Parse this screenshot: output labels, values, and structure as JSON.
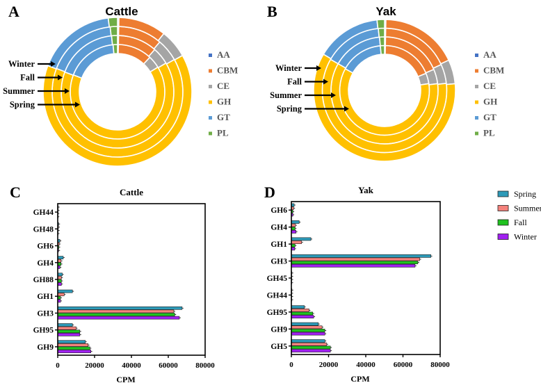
{
  "chart_data": [
    {
      "panel": "A",
      "type": "pie",
      "title": "Cattle",
      "rings": [
        "Spring",
        "Summer",
        "Fall",
        "Winter"
      ],
      "categories": [
        "AA",
        "CBM",
        "CE",
        "GH",
        "GT",
        "PL"
      ],
      "colors": {
        "AA": "#4472C4",
        "CBM": "#ED7D31",
        "CE": "#A5A5A5",
        "GH": "#FFC000",
        "GT": "#5B9BD5",
        "PL": "#70AD47"
      },
      "series": [
        {
          "name": "Spring",
          "values": [
            0.3,
            11.7,
            4.3,
            64.5,
            17.7,
            1.5
          ]
        },
        {
          "name": "Summer",
          "values": [
            0.3,
            11.2,
            5.0,
            64.2,
            17.6,
            1.7
          ]
        },
        {
          "name": "Fall",
          "values": [
            0.3,
            10.9,
            5.6,
            64.0,
            17.4,
            1.8
          ]
        },
        {
          "name": "Winter",
          "values": [
            0.3,
            10.4,
            6.2,
            63.8,
            17.3,
            2.0
          ]
        }
      ]
    },
    {
      "panel": "B",
      "type": "pie",
      "title": "Yak",
      "rings": [
        "Spring",
        "Summer",
        "Fall",
        "Winter"
      ],
      "categories": [
        "AA",
        "CBM",
        "CE",
        "GH",
        "GT",
        "PL"
      ],
      "colors": {
        "AA": "#4472C4",
        "CBM": "#ED7D31",
        "CE": "#A5A5A5",
        "GH": "#FFC000",
        "GT": "#5B9BD5",
        "PL": "#70AD47"
      },
      "series": [
        {
          "name": "Spring",
          "values": [
            0.3,
            18.5,
            3.8,
            60.4,
            15.5,
            1.5
          ]
        },
        {
          "name": "Summer",
          "values": [
            0.3,
            18.3,
            4.4,
            60.3,
            15.2,
            1.5
          ]
        },
        {
          "name": "Fall",
          "values": [
            0.3,
            17.9,
            5.0,
            60.1,
            15.1,
            1.6
          ]
        },
        {
          "name": "Winter",
          "values": [
            0.3,
            17.7,
            5.5,
            60.0,
            14.8,
            1.7
          ]
        }
      ]
    },
    {
      "panel": "C",
      "type": "bar",
      "orientation": "horizontal",
      "title": "Cattle",
      "xlabel": "CPM",
      "ylabel": "",
      "xlim": [
        0,
        80000
      ],
      "xticks": [
        "0",
        "20000",
        "40000",
        "60000",
        "80000"
      ],
      "categories": [
        "GH44",
        "GH48",
        "GH6",
        "GH4",
        "GH88",
        "GH1",
        "GH3",
        "GH95",
        "GH9"
      ],
      "series": [
        {
          "name": "Spring",
          "color": "#2E9AB8",
          "values": [
            300,
            500,
            1200,
            3000,
            2500,
            8000,
            67500,
            8000,
            15000
          ]
        },
        {
          "name": "Summer",
          "color": "#F4827C",
          "values": [
            200,
            400,
            800,
            1800,
            2000,
            3500,
            63000,
            10000,
            16500
          ]
        },
        {
          "name": "Fall",
          "color": "#1FC21F",
          "values": [
            100,
            300,
            600,
            1800,
            2000,
            1500,
            63500,
            12000,
            17500
          ]
        },
        {
          "name": "Winter",
          "color": "#A020F0",
          "values": [
            100,
            200,
            500,
            1200,
            2000,
            1500,
            66000,
            12000,
            18000
          ]
        }
      ]
    },
    {
      "panel": "D",
      "type": "bar",
      "orientation": "horizontal",
      "title": "Yak",
      "xlabel": "CPM",
      "ylabel": "",
      "xlim": [
        0,
        80000
      ],
      "xticks": [
        "0",
        "20000",
        "40000",
        "60000",
        "80000"
      ],
      "categories": [
        "GH6",
        "GH4",
        "GH1",
        "GH3",
        "GH45",
        "GH44",
        "GH95",
        "GH9",
        "GH5"
      ],
      "legend_position": "right",
      "series": [
        {
          "name": "Spring",
          "color": "#2E9AB8",
          "values": [
            1500,
            4200,
            10500,
            75000,
            300,
            300,
            7000,
            14500,
            18000
          ]
        },
        {
          "name": "Summer",
          "color": "#F4827C",
          "values": [
            1200,
            2200,
            5500,
            69000,
            200,
            200,
            9500,
            16500,
            19000
          ]
        },
        {
          "name": "Fall",
          "color": "#1FC21F",
          "values": [
            800,
            2000,
            2000,
            68000,
            200,
            200,
            11500,
            18000,
            21000
          ]
        },
        {
          "name": "Winter",
          "color": "#A020F0",
          "values": [
            800,
            2500,
            1800,
            66500,
            200,
            200,
            12000,
            18000,
            21000
          ]
        }
      ]
    }
  ]
}
